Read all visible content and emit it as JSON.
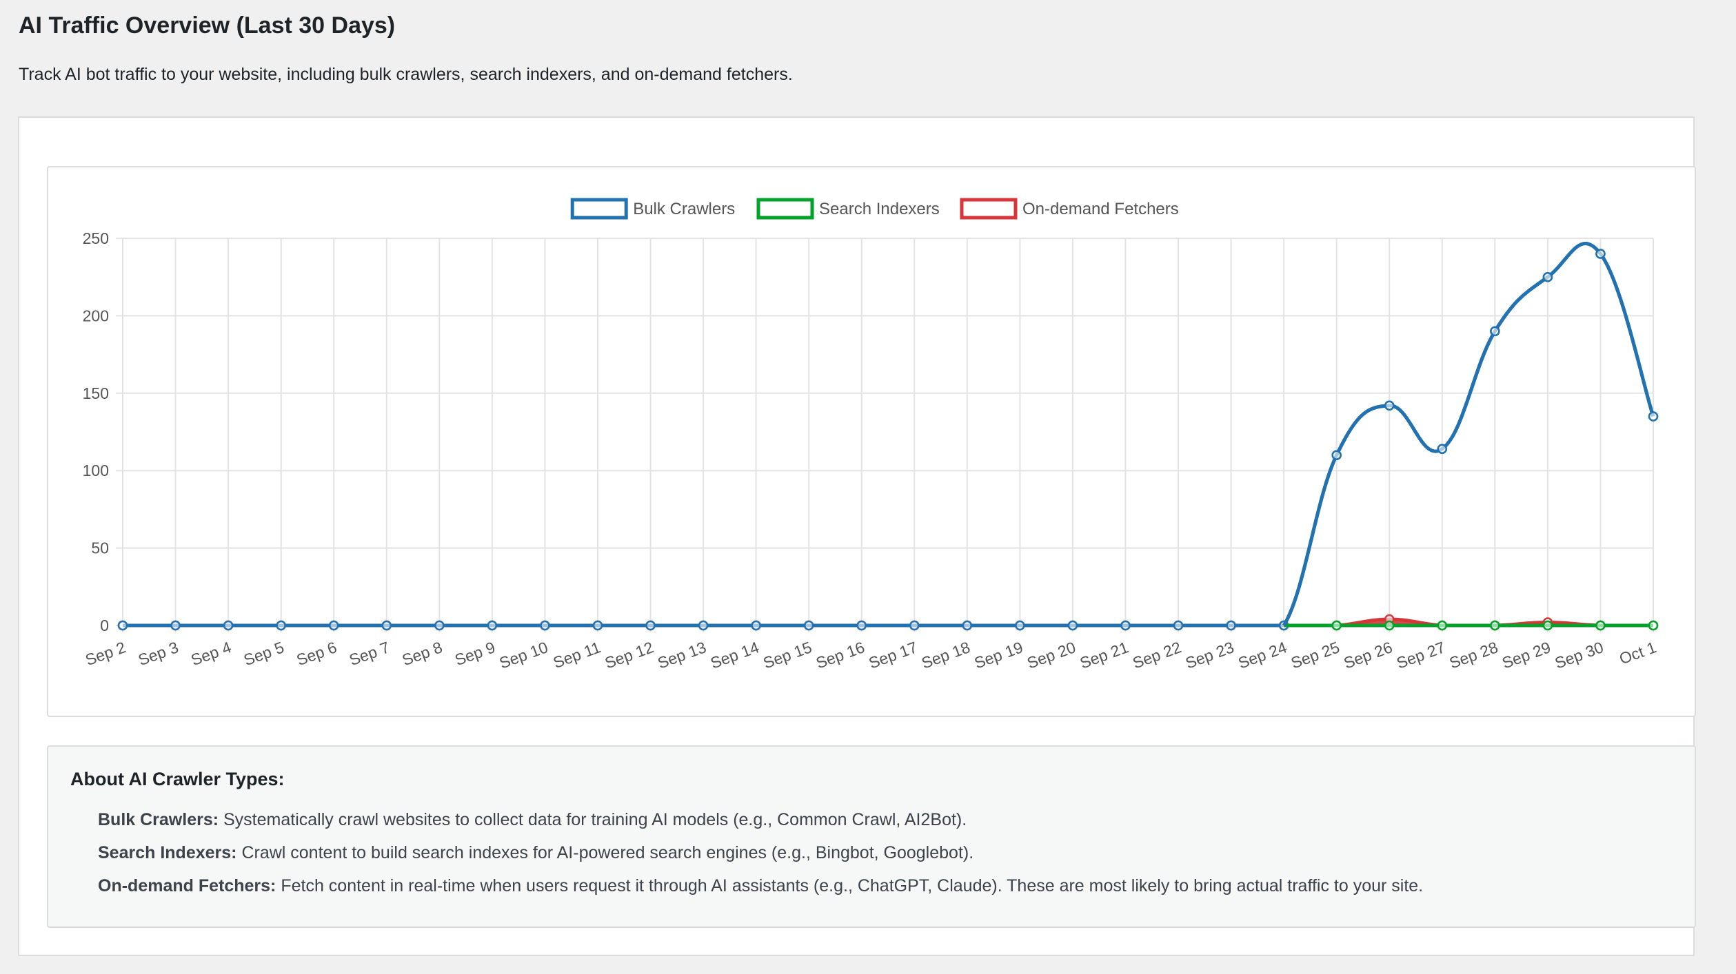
{
  "header": {
    "title": "AI Traffic Overview (Last 30 Days)",
    "description": "Track AI bot traffic to your website, including bulk crawlers, search indexers, and on-demand fetchers."
  },
  "chart_data": {
    "type": "line",
    "title": "",
    "xlabel": "",
    "ylabel": "",
    "ylim": [
      0,
      250
    ],
    "y_ticks": [
      "0",
      "50",
      "100",
      "150",
      "200",
      "250"
    ],
    "grid": true,
    "legend_position": "top",
    "categories": [
      "Sep 2",
      "Sep 3",
      "Sep 4",
      "Sep 5",
      "Sep 6",
      "Sep 7",
      "Sep 8",
      "Sep 9",
      "Sep 10",
      "Sep 11",
      "Sep 12",
      "Sep 13",
      "Sep 14",
      "Sep 15",
      "Sep 16",
      "Sep 17",
      "Sep 18",
      "Sep 19",
      "Sep 20",
      "Sep 21",
      "Sep 22",
      "Sep 23",
      "Sep 24",
      "Sep 25",
      "Sep 26",
      "Sep 27",
      "Sep 28",
      "Sep 29",
      "Sep 30",
      "Oct 1"
    ],
    "series": [
      {
        "name": "Bulk Crawlers",
        "color": "#2271b1",
        "values": [
          0,
          0,
          0,
          0,
          0,
          0,
          0,
          0,
          0,
          0,
          0,
          0,
          0,
          0,
          0,
          0,
          0,
          0,
          0,
          0,
          0,
          0,
          0,
          110,
          142,
          114,
          190,
          225,
          240,
          135
        ]
      },
      {
        "name": "Search Indexers",
        "color": "#00a32a",
        "values": [
          0,
          0,
          0,
          0,
          0,
          0,
          0,
          0,
          0,
          0,
          0,
          0,
          0,
          0,
          0,
          0,
          0,
          0,
          0,
          0,
          0,
          0,
          0,
          0,
          0,
          0,
          0,
          0,
          0,
          0
        ]
      },
      {
        "name": "On-demand Fetchers",
        "color": "#d63638",
        "values": [
          0,
          0,
          0,
          0,
          0,
          0,
          0,
          0,
          0,
          0,
          0,
          0,
          0,
          0,
          0,
          0,
          0,
          0,
          0,
          0,
          0,
          0,
          0,
          0,
          4,
          0,
          0,
          2,
          0,
          0
        ]
      }
    ]
  },
  "about": {
    "title": "About AI Crawler Types:",
    "items": [
      {
        "term": "Bulk Crawlers:",
        "text": " Systematically crawl websites to collect data for training AI models (e.g., Common Crawl, AI2Bot)."
      },
      {
        "term": "Search Indexers:",
        "text": " Crawl content to build search indexes for AI-powered search engines (e.g., Bingbot, Googlebot)."
      },
      {
        "term": "On-demand Fetchers:",
        "text": " Fetch content in real-time when users request it through AI assistants (e.g., ChatGPT, Claude). These are most likely to bring actual traffic to your site."
      }
    ]
  }
}
